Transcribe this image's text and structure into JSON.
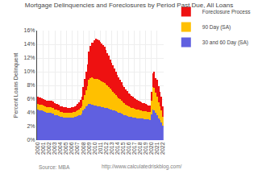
{
  "chart_data": {
    "type": "bar",
    "stacked": true,
    "title": "Mortgage Delinquencies and Foreclosures by Period Past Due, All Loans",
    "ylabel": "Percent Loans Delinquent",
    "annotations": [
      "Source: MBA",
      "http://www.calculatedriskblog.com/"
    ],
    "categories": [
      "2000",
      null,
      null,
      null,
      "2001",
      null,
      null,
      null,
      "2002",
      null,
      null,
      null,
      "2003",
      null,
      null,
      null,
      "2004",
      null,
      null,
      null,
      "2005",
      null,
      null,
      null,
      "2006",
      null,
      null,
      null,
      "2007",
      null,
      null,
      null,
      "2008",
      null,
      null,
      null,
      "2009",
      null,
      null,
      null,
      "2010",
      null,
      null,
      null,
      "2011",
      null,
      null,
      null,
      "2012",
      null,
      null,
      null,
      "2013",
      null,
      null,
      null,
      "2014",
      null,
      null,
      null,
      "2015",
      null,
      null,
      null,
      "2016",
      null,
      null,
      null,
      "2017",
      null,
      null,
      null,
      "2018",
      null,
      null,
      null,
      "2019",
      null,
      null,
      null,
      "2020",
      null,
      null,
      null,
      "2021",
      null,
      null,
      null,
      "2022"
    ],
    "series": [
      {
        "name": "30 and 60 Day (SA)",
        "color": "#6060E0",
        "values": [
          0.045,
          0.044,
          0.044,
          0.0435,
          0.042,
          0.041,
          0.0405,
          0.04,
          0.04,
          0.0395,
          0.039,
          0.0385,
          0.037,
          0.0365,
          0.036,
          0.0355,
          0.0345,
          0.034,
          0.0335,
          0.0335,
          0.033,
          0.0328,
          0.0325,
          0.0325,
          0.033,
          0.0335,
          0.034,
          0.0345,
          0.0355,
          0.036,
          0.037,
          0.0385,
          0.043,
          0.046,
          0.049,
          0.051,
          0.053,
          0.0525,
          0.052,
          0.0515,
          0.051,
          0.0505,
          0.05,
          0.0495,
          0.049,
          0.0485,
          0.048,
          0.0475,
          0.047,
          0.0465,
          0.046,
          0.045,
          0.0445,
          0.0438,
          0.043,
          0.042,
          0.041,
          0.04,
          0.0395,
          0.0385,
          0.0375,
          0.0368,
          0.036,
          0.0352,
          0.0345,
          0.034,
          0.0336,
          0.0332,
          0.0328,
          0.0325,
          0.0322,
          0.032,
          0.0318,
          0.0315,
          0.0313,
          0.031,
          0.0308,
          0.0305,
          0.0303,
          0.03,
          0.038,
          0.045,
          0.043,
          0.04,
          0.036,
          0.032,
          0.029,
          0.026,
          0.021
        ]
      },
      {
        "name": "90 Day (SA)",
        "color": "#FFC000",
        "values": [
          0.008,
          0.0082,
          0.0083,
          0.0082,
          0.0082,
          0.0081,
          0.008,
          0.0079,
          0.0082,
          0.0083,
          0.0085,
          0.0084,
          0.0078,
          0.0077,
          0.0076,
          0.0075,
          0.0072,
          0.0071,
          0.007,
          0.007,
          0.007,
          0.007,
          0.0071,
          0.0071,
          0.0072,
          0.0073,
          0.0075,
          0.0078,
          0.0085,
          0.009,
          0.01,
          0.0115,
          0.016,
          0.02,
          0.024,
          0.028,
          0.035,
          0.038,
          0.04,
          0.039,
          0.039,
          0.0392,
          0.0395,
          0.039,
          0.0385,
          0.0378,
          0.037,
          0.036,
          0.0345,
          0.033,
          0.0315,
          0.03,
          0.028,
          0.0268,
          0.0255,
          0.0242,
          0.0228,
          0.0215,
          0.0205,
          0.0195,
          0.0182,
          0.0172,
          0.0163,
          0.0155,
          0.0148,
          0.0143,
          0.0138,
          0.0134,
          0.013,
          0.0127,
          0.0124,
          0.0122,
          0.012,
          0.0118,
          0.0116,
          0.0114,
          0.0112,
          0.011,
          0.0108,
          0.0106,
          0.02,
          0.033,
          0.033,
          0.03,
          0.027,
          0.023,
          0.02,
          0.0175,
          0.013
        ]
      },
      {
        "name": "Foreclosure Process",
        "color": "#EE1111",
        "values": [
          0.01,
          0.01,
          0.01,
          0.01,
          0.0098,
          0.0097,
          0.0096,
          0.0096,
          0.0096,
          0.0096,
          0.0097,
          0.0098,
          0.009,
          0.0089,
          0.0088,
          0.0088,
          0.0082,
          0.0081,
          0.008,
          0.008,
          0.0078,
          0.0077,
          0.0076,
          0.0076,
          0.0078,
          0.008,
          0.0082,
          0.0085,
          0.0095,
          0.0105,
          0.012,
          0.014,
          0.019,
          0.023,
          0.027,
          0.032,
          0.042,
          0.047,
          0.05,
          0.052,
          0.056,
          0.058,
          0.058,
          0.057,
          0.056,
          0.055,
          0.054,
          0.0525,
          0.05,
          0.0478,
          0.0455,
          0.0432,
          0.0408,
          0.0385,
          0.0362,
          0.034,
          0.032,
          0.03,
          0.0282,
          0.0265,
          0.0248,
          0.0232,
          0.0218,
          0.0205,
          0.0195,
          0.0185,
          0.0175,
          0.0166,
          0.0158,
          0.015,
          0.0143,
          0.0136,
          0.013,
          0.0124,
          0.0118,
          0.0113,
          0.0108,
          0.0103,
          0.0099,
          0.0096,
          0.013,
          0.02,
          0.024,
          0.021,
          0.025,
          0.024,
          0.022,
          0.02,
          0.015
        ]
      }
    ],
    "ylim": [
      0,
      0.16
    ],
    "yticks": [
      {
        "value": 0,
        "label": "0%"
      },
      {
        "value": 0.02,
        "label": "2%"
      },
      {
        "value": 0.04,
        "label": "4%"
      },
      {
        "value": 0.06,
        "label": "6%"
      },
      {
        "value": 0.08,
        "label": "8%"
      },
      {
        "value": 0.1,
        "label": "10%"
      },
      {
        "value": 0.12,
        "label": "12%"
      },
      {
        "value": 0.14,
        "label": "14%"
      },
      {
        "value": 0.16,
        "label": "16%"
      }
    ],
    "grid": true,
    "legend": "upper right"
  }
}
